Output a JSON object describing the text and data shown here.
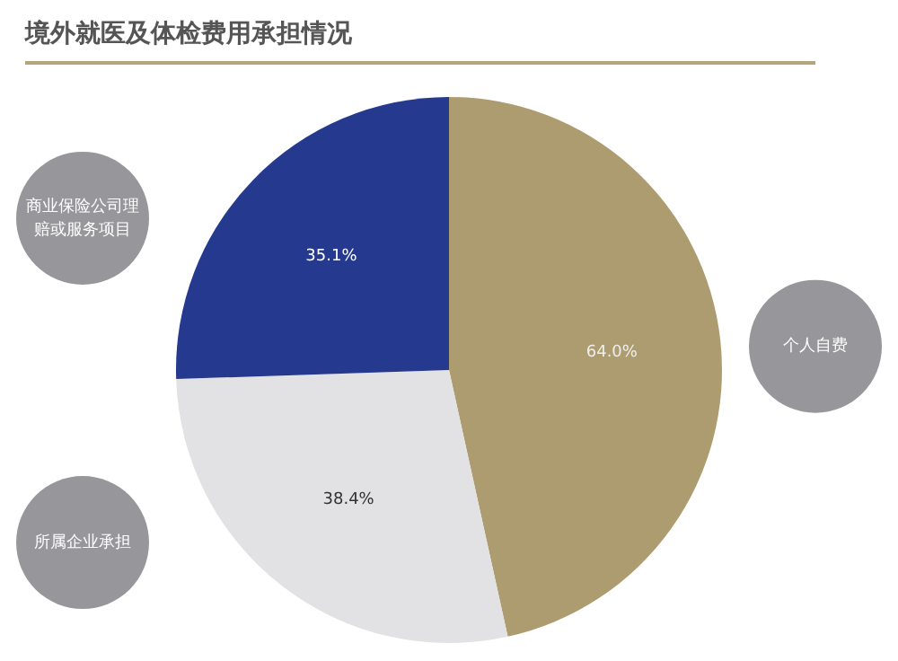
{
  "chart_data": {
    "type": "pie",
    "title": "境外就医及体检费用承担情况",
    "categories": [
      "个人自费",
      "所属企业承担",
      "商业保险公司理赔或服务项目"
    ],
    "values": [
      64.0,
      38.4,
      35.1
    ],
    "colors": [
      "#ad9c6f",
      "#e2e2e4",
      "#253a8f"
    ],
    "value_labels": [
      "64.0%",
      "38.4%",
      "35.1%"
    ],
    "legend": false
  }
}
